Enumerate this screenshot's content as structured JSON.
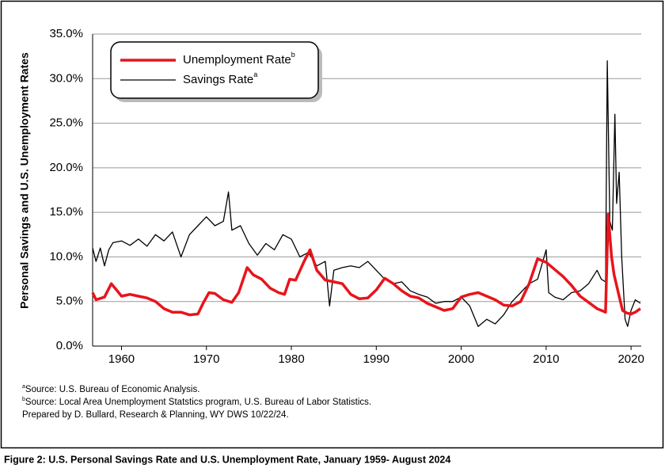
{
  "chart_data": {
    "type": "line",
    "y_label": "Personal Savings and U.S. Unemployment Rates",
    "caption": "Figure 2:  U.S. Personal Savings Rate and U.S. Unemployment Rate, January 1959- August 2024",
    "notes": [
      {
        "mark": "a",
        "text": "Source: U.S. Bureau of Economic Analysis."
      },
      {
        "mark": "b",
        "text": "Source: Local Area Unemployment Statstics program, U.S. Bureau of Labor Statistics."
      },
      {
        "text": "Prepared by D. Bullard, Research & Planning, WY DWS 10/22/24."
      }
    ],
    "xlim": [
      1956.6,
      2021.2
    ],
    "xticks": [
      1960,
      1970,
      1980,
      1990,
      2000,
      2010,
      2020
    ],
    "ylim": [
      0,
      35
    ],
    "yticks": [
      {
        "value": 0,
        "label": "0.0%"
      },
      {
        "value": 5,
        "label": "5.0%"
      },
      {
        "value": 10,
        "label": "10.0%"
      },
      {
        "value": 15,
        "label": "15.0%"
      },
      {
        "value": 20,
        "label": "20.0%"
      },
      {
        "value": 25,
        "label": "25.0%"
      },
      {
        "value": 30,
        "label": "30.0%"
      },
      {
        "value": 35,
        "label": "35.0%"
      }
    ],
    "grid": true,
    "legend": "upper left",
    "series": [
      {
        "name": "Unemployment Rate",
        "superscript": "b",
        "color": "#e8141b",
        "width": 3.5,
        "x": [
          1956.6,
          1957,
          1958,
          1958.8,
          1959.5,
          1960,
          1961,
          1962,
          1963,
          1964,
          1965,
          1966,
          1967,
          1968,
          1969,
          1969.6,
          1970.3,
          1971,
          1972,
          1973,
          1973.8,
          1974.8,
          1975.5,
          1976.5,
          1977.5,
          1978.5,
          1979.2,
          1979.8,
          1980.5,
          1981.5,
          1982.2,
          1983,
          1984,
          1985,
          1986,
          1987,
          1988,
          1989,
          1990,
          1991,
          1992,
          1993,
          1994,
          1995,
          1996,
          1997,
          1998,
          1999,
          2000,
          2001,
          2002,
          2003,
          2004,
          2005,
          2006,
          2007,
          2008,
          2009,
          2010,
          2011,
          2012,
          2013,
          2014,
          2015,
          2016,
          2017,
          2017.3,
          2017.7,
          2018,
          2018.5,
          2019,
          2019.5,
          2020,
          2020.5,
          2021.1
        ],
        "values": [
          6.0,
          5.2,
          5.5,
          7.0,
          6.2,
          5.6,
          5.8,
          5.6,
          5.4,
          5.0,
          4.2,
          3.8,
          3.8,
          3.5,
          3.6,
          4.8,
          6.0,
          5.9,
          5.2,
          4.9,
          6.0,
          8.8,
          8.0,
          7.5,
          6.5,
          6.0,
          5.8,
          7.5,
          7.4,
          9.5,
          10.8,
          8.5,
          7.4,
          7.2,
          7.0,
          5.8,
          5.3,
          5.4,
          6.3,
          7.6,
          7.0,
          6.2,
          5.6,
          5.4,
          4.8,
          4.4,
          4.0,
          4.2,
          5.5,
          5.8,
          6.0,
          5.6,
          5.2,
          4.6,
          4.5,
          5.0,
          7.0,
          9.8,
          9.4,
          8.6,
          7.8,
          6.8,
          5.6,
          4.9,
          4.2,
          3.8,
          14.8,
          10.0,
          8.0,
          6.0,
          4.0,
          3.7,
          3.6,
          3.8,
          4.2
        ]
      },
      {
        "name": "Savings Rate",
        "superscript": "a",
        "color": "#000000",
        "width": 1.3,
        "x": [
          1956.6,
          1957,
          1957.5,
          1958,
          1958.5,
          1959,
          1960,
          1961,
          1962,
          1963,
          1964,
          1965,
          1966,
          1967,
          1968,
          1969,
          1970,
          1971,
          1972,
          1972.6,
          1973,
          1974,
          1975,
          1976,
          1977,
          1978,
          1979,
          1980,
          1981,
          1982,
          1983,
          1984,
          1984.5,
          1985,
          1986,
          1987,
          1988,
          1989,
          1990,
          1991,
          1992,
          1993,
          1994,
          1995,
          1996,
          1997,
          1998,
          1999,
          2000,
          2001,
          2002,
          2003,
          2004,
          2005,
          2006,
          2007,
          2008,
          2009,
          2010,
          2010.3,
          2011,
          2012,
          2013,
          2014,
          2015,
          2016,
          2016.5,
          2017,
          2017.2,
          2017.5,
          2017.8,
          2018.1,
          2018.3,
          2018.6,
          2018.9,
          2019.3,
          2019.6,
          2020,
          2020.5,
          2021.1
        ],
        "values": [
          11.0,
          9.5,
          11.0,
          9.0,
          10.8,
          11.6,
          11.8,
          11.3,
          12.0,
          11.2,
          12.5,
          11.8,
          12.8,
          10.0,
          12.5,
          13.5,
          14.5,
          13.5,
          14.0,
          17.3,
          13.0,
          13.5,
          11.5,
          10.2,
          11.5,
          10.8,
          12.5,
          12.0,
          10.0,
          10.5,
          9.0,
          9.5,
          4.5,
          8.5,
          8.8,
          9.0,
          8.8,
          9.5,
          8.5,
          7.5,
          7.0,
          7.2,
          6.2,
          5.8,
          5.5,
          4.8,
          5.0,
          5.0,
          5.5,
          4.5,
          2.2,
          3.0,
          2.5,
          3.5,
          5.0,
          6.0,
          7.0,
          7.5,
          10.8,
          6.0,
          5.5,
          5.2,
          6.0,
          6.2,
          7.0,
          8.5,
          7.5,
          7.2,
          32.0,
          14.0,
          13.0,
          26.0,
          16.0,
          19.5,
          10.0,
          3.0,
          2.2,
          4.0,
          5.2,
          4.8
        ]
      }
    ]
  }
}
